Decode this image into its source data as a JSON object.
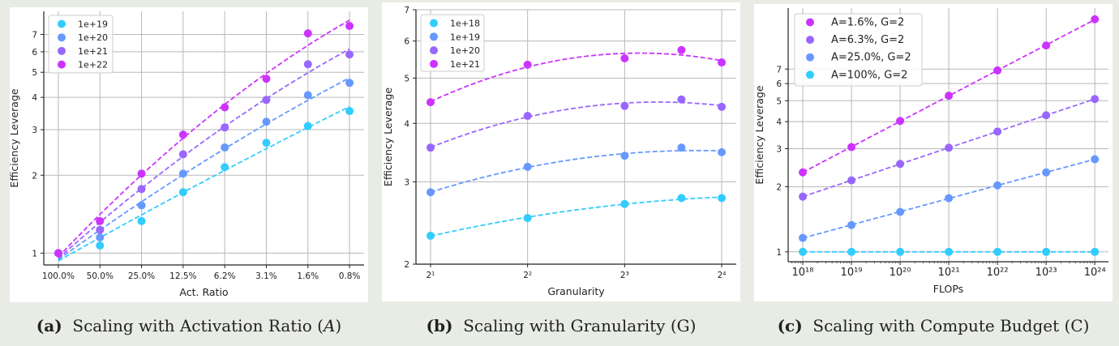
{
  "chart_data": [
    {
      "type": "scatter",
      "panel": "a",
      "xlabel": "Act. Ratio",
      "ylabel": "Efficiency Leverage",
      "y_scale": "log",
      "ylim": [
        0.9,
        8.6
      ],
      "grid": true,
      "legend": "top-left",
      "fit_lines": "dashed",
      "categories": [
        "100.0%",
        "50.0%",
        "25.0%",
        "12.5%",
        "6.2%",
        "3.1%",
        "1.6%",
        "0.8%"
      ],
      "y_ticks": [
        1,
        2,
        3,
        4,
        5,
        6,
        7
      ],
      "y_tick_labels": [
        "1",
        "2",
        "3",
        "4",
        "5",
        "6",
        "7"
      ],
      "series": [
        {
          "name": "1e+19",
          "color": "#33ccff",
          "values": [
            1.0,
            1.07,
            1.33,
            1.72,
            2.15,
            2.67,
            3.1,
            3.54
          ]
        },
        {
          "name": "1e+20",
          "color": "#6699ff",
          "values": [
            1.0,
            1.15,
            1.53,
            2.03,
            2.56,
            3.22,
            4.08,
            4.55
          ]
        },
        {
          "name": "1e+21",
          "color": "#9966ff",
          "values": [
            1.0,
            1.23,
            1.77,
            2.41,
            3.06,
            3.91,
            5.37,
            5.86
          ]
        },
        {
          "name": "1e+22",
          "color": "#cc33ff",
          "values": [
            1.0,
            1.33,
            2.03,
            2.87,
            3.66,
            4.72,
            7.07,
            7.55
          ]
        }
      ]
    },
    {
      "type": "scatter",
      "panel": "b",
      "xlabel": "Granularity",
      "ylabel": "Efficiency Leverage",
      "x_scale": "log2",
      "y_scale": "log",
      "ylim": [
        2,
        7
      ],
      "grid": true,
      "legend": "top-left",
      "fit_lines": "dashed",
      "x": [
        2,
        4,
        8,
        12,
        16
      ],
      "x_ticks": [
        2,
        4,
        8,
        16
      ],
      "x_tick_labels": [
        "2¹",
        "2²",
        "2³",
        "2⁴"
      ],
      "y_ticks": [
        2,
        3,
        4,
        5,
        6,
        7
      ],
      "y_tick_labels": [
        "2",
        "3",
        "4",
        "5",
        "6",
        "7"
      ],
      "series": [
        {
          "name": "1e+18",
          "color": "#33ccff",
          "values": [
            2.3,
            2.51,
            2.69,
            2.77,
            2.77
          ]
        },
        {
          "name": "1e+19",
          "color": "#6699ff",
          "values": [
            2.85,
            3.23,
            3.41,
            3.55,
            3.47
          ]
        },
        {
          "name": "1e+20",
          "color": "#9966ff",
          "values": [
            3.55,
            4.15,
            4.36,
            4.5,
            4.34
          ]
        },
        {
          "name": "1e+21",
          "color": "#cc33ff",
          "values": [
            4.44,
            5.34,
            5.51,
            5.74,
            5.4
          ]
        }
      ]
    },
    {
      "type": "scatter",
      "panel": "c",
      "xlabel": "FLOPs",
      "ylabel": "Efficiency Leverage",
      "x_scale": "log",
      "y_scale": "log",
      "ylim": [
        0.9,
        13.4
      ],
      "grid": true,
      "legend": "top-left",
      "fit_lines": "dashed",
      "x": [
        1e+18,
        1e+19,
        1e+20,
        1e+21,
        1e+22,
        1e+23,
        1e+24
      ],
      "x_tick_labels": [
        "10¹⁸",
        "10¹⁹",
        "10²⁰",
        "10²¹",
        "10²²",
        "10²³",
        "10²⁴"
      ],
      "y_ticks": [
        1,
        2,
        3,
        4,
        5,
        6,
        7
      ],
      "y_tick_labels": [
        "1",
        "2",
        "3",
        "4",
        "5",
        "6",
        "7"
      ],
      "series": [
        {
          "name": "A=1.6%, G=2",
          "color": "#cc33ff",
          "values": [
            2.33,
            3.05,
            4.03,
            5.27,
            6.9,
            9.0,
            11.9
          ]
        },
        {
          "name": "A=6.3%, G=2",
          "color": "#9966ff",
          "values": [
            1.8,
            2.14,
            2.55,
            3.03,
            3.6,
            4.28,
            5.09
          ]
        },
        {
          "name": "A=25.0%, G=2",
          "color": "#6699ff",
          "values": [
            1.16,
            1.33,
            1.53,
            1.77,
            2.03,
            2.33,
            2.68
          ]
        },
        {
          "name": "A=100%, G=2",
          "color": "#33ccff",
          "values": [
            1,
            1,
            1,
            1,
            1,
            1,
            1
          ]
        }
      ]
    }
  ],
  "captions": [
    {
      "label": "(a)",
      "text": "Scaling with Activation Ratio (",
      "var": "A",
      "end": ")"
    },
    {
      "label": "(b)",
      "text": "Scaling with Granularity (",
      "var": "G",
      "end": ")"
    },
    {
      "label": "(c)",
      "text": "Scaling with Compute Budget (",
      "var": "C",
      "end": ")"
    }
  ]
}
